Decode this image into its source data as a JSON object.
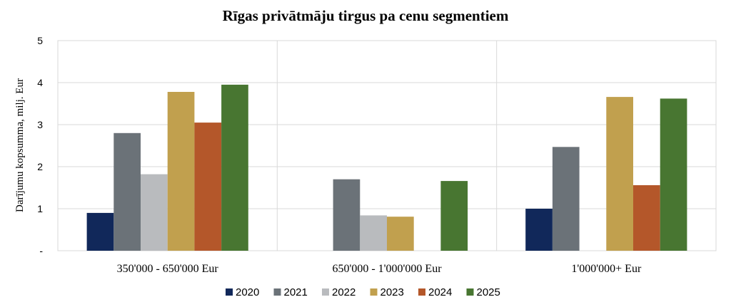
{
  "chart_data": {
    "type": "bar",
    "title": "Rīgas privātmāju tirgus pa cenu segmentiem",
    "xlabel": "",
    "ylabel": "Darījumu kopsumma, milj. Eur",
    "ylim": [
      0,
      5
    ],
    "yticks": [
      {
        "value": 0,
        "label": "-"
      },
      {
        "value": 1,
        "label": "1"
      },
      {
        "value": 2,
        "label": "2"
      },
      {
        "value": 3,
        "label": "3"
      },
      {
        "value": 4,
        "label": "4"
      },
      {
        "value": 5,
        "label": "5"
      }
    ],
    "grid": true,
    "legend_position": "bottom",
    "categories": [
      "350'000 - 650'000 Eur",
      "650'000 - 1'000'000 Eur",
      "1'000'000+ Eur"
    ],
    "series": [
      {
        "name": "2020",
        "color": "#11285a",
        "values": [
          0.9,
          0,
          1.0
        ]
      },
      {
        "name": "2021",
        "color": "#6b7278",
        "values": [
          2.8,
          1.7,
          2.47
        ]
      },
      {
        "name": "2022",
        "color": "#b9bbbe",
        "values": [
          1.82,
          0.84,
          0
        ]
      },
      {
        "name": "2023",
        "color": "#c1a04e",
        "values": [
          3.78,
          0.81,
          3.66
        ]
      },
      {
        "name": "2024",
        "color": "#b4572a",
        "values": [
          3.05,
          0,
          1.56
        ]
      },
      {
        "name": "2025",
        "color": "#487631",
        "values": [
          3.95,
          1.66,
          3.62
        ]
      }
    ]
  }
}
